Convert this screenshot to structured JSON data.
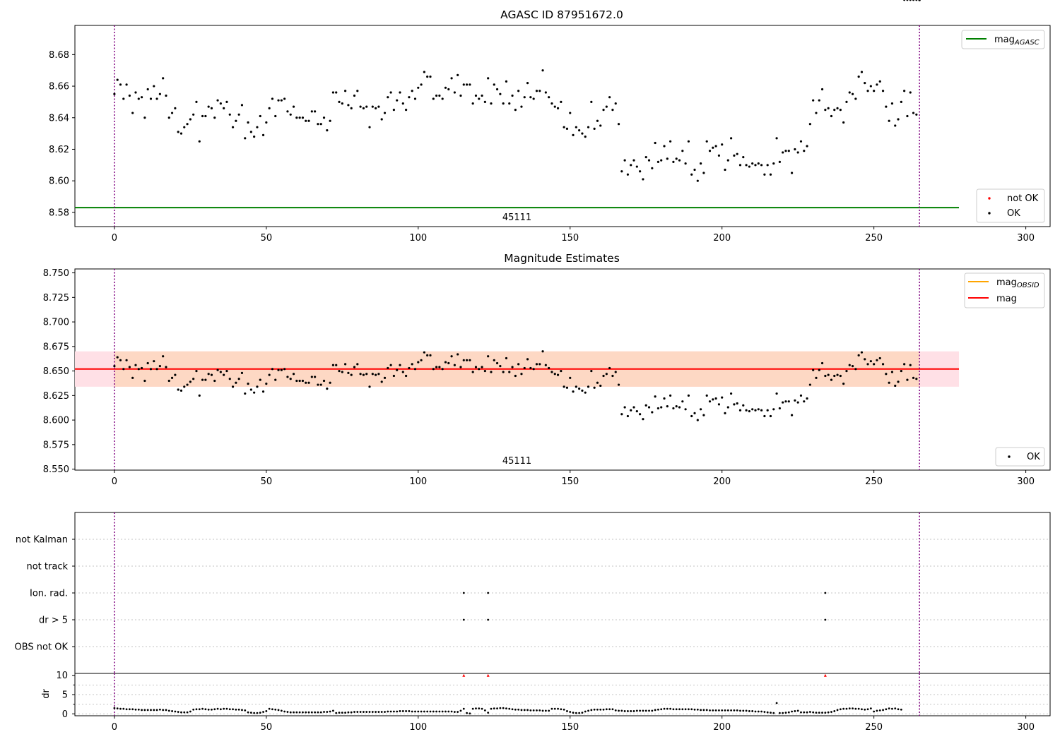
{
  "chart_data": [
    {
      "type": "scatter",
      "title": "AGASC ID 87951672.0",
      "xlim": [
        -13,
        308
      ],
      "ylim": [
        8.571,
        8.6985
      ],
      "xticks": [
        0,
        50,
        100,
        150,
        200,
        250,
        300
      ],
      "yticks": [
        "8.58",
        "8.60",
        "8.62",
        "8.64",
        "8.66",
        "8.68"
      ],
      "reference_line": {
        "name": "mag_AGASC",
        "value": 8.583,
        "color": "#008000",
        "x": [
          -13,
          278
        ]
      },
      "obsid_bounds": [
        0,
        265
      ],
      "obsid_label": "45111",
      "legend_top": {
        "label_main": "mag",
        "label_sub": "AGASC",
        "position": "top-right"
      },
      "legend_bottom": {
        "items": [
          "not OK",
          "OK"
        ],
        "colors": [
          "#ff0000",
          "#000000"
        ],
        "position": "bottom-right"
      },
      "series": [
        {
          "name": "OK",
          "values_from": "magnitudes"
        }
      ],
      "grid": false
    },
    {
      "type": "scatter",
      "title": "Magnitude Estimates",
      "xlim": [
        -13,
        308
      ],
      "ylim": [
        8.549,
        8.754
      ],
      "xticks": [
        0,
        50,
        100,
        150,
        200,
        250,
        300
      ],
      "yticks": [
        "8.550",
        "8.575",
        "8.600",
        "8.625",
        "8.650",
        "8.675",
        "8.700",
        "8.725",
        "8.750"
      ],
      "band": {
        "low": 8.634,
        "high": 8.67,
        "x": [
          -13,
          278
        ],
        "colors": [
          "#ffe0e6",
          "#fdd8c4"
        ]
      },
      "mag_line": {
        "name": "mag",
        "value": 8.652,
        "color": "#ff0000"
      },
      "mag_obsid_line": {
        "name": "mag_OBSID",
        "value": 8.652,
        "color": "#ffa500"
      },
      "obsid_bounds": [
        0,
        265
      ],
      "obsid_label": "45111",
      "legend_top": {
        "items": [
          {
            "main": "mag",
            "sub": "OBSID",
            "color": "#ffa500"
          },
          {
            "main": "mag",
            "sub": "",
            "color": "#ff0000"
          }
        ],
        "position": "top-right"
      },
      "legend_bottom": {
        "items": [
          "OK"
        ],
        "position": "bottom-right"
      },
      "series": [
        {
          "name": "OK",
          "values_from": "magnitudes"
        }
      ],
      "grid": false
    },
    {
      "type": "scatter",
      "title": "",
      "xlim": [
        -13,
        308
      ],
      "categories": [
        "OBS not OK",
        "dr > 5",
        "Ion. rad.",
        "not track",
        "not Kalman"
      ],
      "flags": [
        {
          "category": "dr > 5",
          "x": [
            115,
            123,
            234
          ]
        },
        {
          "category": "Ion. rad.",
          "x": [
            115,
            123,
            234
          ]
        }
      ],
      "obsid_bounds": [
        0,
        265
      ],
      "grid": true
    },
    {
      "type": "scatter",
      "title": "",
      "ylabel": "dr",
      "xlim": [
        -13,
        308
      ],
      "ylim": [
        -0.5,
        10.5
      ],
      "xticks": [
        0,
        50,
        100,
        150,
        200,
        250,
        300
      ],
      "yticks": [
        0,
        5,
        10
      ],
      "flagged_points": {
        "x": [
          115,
          123,
          234
        ],
        "y": 10,
        "color": "#ff0000"
      },
      "series": [
        {
          "name": "dr",
          "values_from": "dr"
        }
      ],
      "obsid_bounds": [
        0,
        265
      ],
      "grid": true
    }
  ],
  "x": [
    0,
    1,
    2,
    3,
    4,
    5,
    6,
    7,
    8,
    9,
    10,
    11,
    12,
    13,
    14,
    15,
    16,
    17,
    18,
    19,
    20,
    21,
    22,
    23,
    24,
    25,
    26,
    27,
    28,
    29,
    30,
    31,
    32,
    33,
    34,
    35,
    36,
    37,
    38,
    39,
    40,
    41,
    42,
    43,
    44,
    45,
    46,
    47,
    48,
    49,
    50,
    51,
    52,
    53,
    54,
    55,
    56,
    57,
    58,
    59,
    60,
    61,
    62,
    63,
    64,
    65,
    66,
    67,
    68,
    69,
    70,
    71,
    72,
    73,
    74,
    75,
    76,
    77,
    78,
    79,
    80,
    81,
    82,
    83,
    84,
    85,
    86,
    87,
    88,
    89,
    90,
    91,
    92,
    93,
    94,
    95,
    96,
    97,
    98,
    99,
    100,
    101,
    102,
    103,
    104,
    105,
    106,
    107,
    108,
    109,
    110,
    111,
    112,
    113,
    114,
    115,
    116,
    117,
    118,
    119,
    120,
    121,
    122,
    123,
    124,
    125,
    126,
    127,
    128,
    129,
    130,
    131,
    132,
    133,
    134,
    135,
    136,
    137,
    138,
    139,
    140,
    141,
    142,
    143,
    144,
    145,
    146,
    147,
    148,
    149,
    150,
    151,
    152,
    153,
    154,
    155,
    156,
    157,
    158,
    159,
    160,
    161,
    162,
    163,
    164,
    165,
    166,
    167,
    168,
    169,
    170,
    171,
    172,
    173,
    174,
    175,
    176,
    177,
    178,
    179,
    180,
    181,
    182,
    183,
    184,
    185,
    186,
    187,
    188,
    189,
    190,
    191,
    192,
    193,
    194,
    195,
    196,
    197,
    198,
    199,
    200,
    201,
    202,
    203,
    204,
    205,
    206,
    207,
    208,
    209,
    210,
    211,
    212,
    213,
    214,
    215,
    216,
    217,
    218,
    219,
    220,
    221,
    222,
    223,
    224,
    225,
    226,
    227,
    228,
    229,
    230,
    231,
    232,
    233,
    234,
    235,
    236,
    237,
    238,
    239,
    240,
    241,
    242,
    243,
    244,
    245,
    246,
    247,
    248,
    249,
    250,
    251,
    252,
    253,
    254,
    255,
    256,
    257,
    258,
    259,
    260,
    261,
    262,
    263,
    264,
    265
  ],
  "magnitudes": [
    8.655,
    8.664,
    8.661,
    8.652,
    8.661,
    8.654,
    8.643,
    8.656,
    8.652,
    8.653,
    8.64,
    8.658,
    8.652,
    8.66,
    8.652,
    8.655,
    8.665,
    8.654,
    8.64,
    8.643,
    8.646,
    8.631,
    8.63,
    8.634,
    8.636,
    8.639,
    8.642,
    8.65,
    8.625,
    8.641,
    8.641,
    8.647,
    8.646,
    8.64,
    8.651,
    8.649,
    8.646,
    8.65,
    8.642,
    8.634,
    8.638,
    8.642,
    8.648,
    8.627,
    8.637,
    8.631,
    8.628,
    8.634,
    8.641,
    8.629,
    8.637,
    8.646,
    8.652,
    8.641,
    8.651,
    8.651,
    8.652,
    8.644,
    8.642,
    8.647,
    8.64,
    8.64,
    8.64,
    8.638,
    8.638,
    8.644,
    8.644,
    8.636,
    8.636,
    8.64,
    8.632,
    8.638,
    8.656,
    8.656,
    8.65,
    8.649,
    8.657,
    8.648,
    8.646,
    8.654,
    8.657,
    8.647,
    8.646,
    8.647,
    8.634,
    8.647,
    8.646,
    8.647,
    8.639,
    8.643,
    8.653,
    8.656,
    8.645,
    8.651,
    8.656,
    8.649,
    8.645,
    8.653,
    8.657,
    8.652,
    8.659,
    8.661,
    8.669,
    8.666,
    8.666,
    8.652,
    8.654,
    8.654,
    8.652,
    8.659,
    8.658,
    8.665,
    8.656,
    8.667,
    8.654,
    8.661,
    8.661,
    8.661,
    8.649,
    8.654,
    8.652,
    8.654,
    8.65,
    8.665,
    8.649,
    8.661,
    8.658,
    8.655,
    8.649,
    8.663,
    8.649,
    8.654,
    8.645,
    8.657,
    8.647,
    8.653,
    8.662,
    8.653,
    8.652,
    8.657,
    8.657,
    8.67,
    8.656,
    8.653,
    8.649,
    8.647,
    8.646,
    8.65,
    8.634,
    8.633,
    8.643,
    8.629,
    8.634,
    8.632,
    8.63,
    8.628,
    8.634,
    8.65,
    8.633,
    8.638,
    8.635,
    8.645,
    8.647,
    8.653,
    8.645,
    8.649,
    8.636,
    8.606,
    8.613,
    8.604,
    8.61,
    8.613,
    8.609,
    8.606,
    8.601,
    8.615,
    8.613,
    8.608,
    8.624,
    8.612,
    8.613,
    8.622,
    8.614,
    8.625,
    8.612,
    8.614,
    8.613,
    8.619,
    8.611,
    8.625,
    8.604,
    8.607,
    8.6,
    8.611,
    8.605,
    8.625,
    8.619,
    8.621,
    8.622,
    8.616,
    8.623,
    8.607,
    8.613,
    8.627,
    8.616,
    8.617,
    8.61,
    8.615,
    8.61,
    8.609,
    8.611,
    8.61,
    8.611,
    8.61,
    8.604,
    8.61,
    8.604,
    8.611,
    8.627,
    8.612,
    8.618,
    8.619,
    8.619,
    8.605,
    8.62,
    8.618,
    8.625,
    8.619,
    8.622,
    8.636,
    8.651,
    8.643,
    8.651,
    8.658,
    8.645,
    8.646,
    8.641,
    8.645,
    8.646,
    8.645,
    8.637,
    8.65,
    8.656,
    8.655,
    8.652,
    8.666,
    8.669,
    8.662,
    8.657,
    8.66,
    8.657,
    8.661,
    8.663,
    8.657,
    8.647,
    8.638,
    8.649,
    8.635,
    8.639,
    8.65,
    8.657,
    8.641,
    8.656,
    8.643,
    8.642
  ],
  "dr": [
    1.5,
    1.4,
    1.3,
    1.3,
    1.2,
    1.2,
    1.2,
    1.1,
    1.1,
    1.0,
    1.0,
    1.0,
    1.0,
    1.0,
    1.0,
    1.1,
    1.0,
    1.0,
    0.8,
    0.7,
    0.6,
    0.5,
    0.4,
    0.4,
    0.4,
    0.6,
    1.1,
    1.2,
    1.2,
    1.3,
    1.2,
    1.1,
    1.1,
    1.2,
    1.3,
    1.2,
    1.3,
    1.3,
    1.2,
    1.2,
    1.1,
    1.1,
    1.0,
    0.9,
    0.4,
    0.3,
    0.2,
    0.2,
    0.3,
    0.5,
    0.7,
    1.3,
    1.2,
    1.1,
    1.0,
    0.8,
    0.6,
    0.5,
    0.4,
    0.4,
    0.4,
    0.4,
    0.4,
    0.4,
    0.4,
    0.4,
    0.4,
    0.4,
    0.4,
    0.5,
    0.5,
    0.6,
    0.8,
    0.2,
    0.3,
    0.3,
    0.3,
    0.4,
    0.4,
    0.5,
    0.5,
    0.5,
    0.5,
    0.5,
    0.5,
    0.5,
    0.5,
    0.5,
    0.5,
    0.5,
    0.6,
    0.6,
    0.6,
    0.6,
    0.7,
    0.7,
    0.7,
    0.7,
    0.6,
    0.6,
    0.6,
    0.6,
    0.6,
    0.6,
    0.6,
    0.6,
    0.6,
    0.6,
    0.6,
    0.6,
    0.6,
    0.6,
    0.5,
    0.5,
    0.8,
    1.3,
    0.2,
    0.1,
    1.3,
    1.4,
    1.4,
    1.3,
    0.9,
    0.3,
    1.3,
    1.4,
    1.4,
    1.5,
    1.5,
    1.4,
    1.3,
    1.2,
    1.1,
    1.1,
    1.0,
    1.0,
    1.0,
    0.9,
    0.9,
    0.9,
    0.9,
    0.8,
    0.8,
    0.8,
    1.3,
    1.3,
    1.3,
    1.2,
    1.1,
    0.7,
    0.5,
    0.3,
    0.2,
    0.2,
    0.3,
    0.6,
    0.8,
    1.0,
    1.1,
    1.1,
    1.1,
    1.1,
    1.2,
    1.2,
    1.2,
    0.9,
    0.8,
    0.8,
    0.7,
    0.7,
    0.7,
    0.7,
    0.8,
    0.8,
    0.8,
    0.8,
    0.8,
    0.8,
    1.0,
    1.1,
    1.2,
    1.3,
    1.3,
    1.3,
    1.2,
    1.2,
    1.2,
    1.2,
    1.2,
    1.2,
    1.2,
    1.1,
    1.1,
    1.0,
    1.0,
    1.0,
    0.9,
    0.9,
    0.9,
    0.9,
    0.9,
    0.9,
    0.9,
    0.9,
    0.9,
    0.9,
    0.8,
    0.8,
    0.8,
    0.7,
    0.7,
    0.6,
    0.6,
    0.6,
    0.5,
    0.4,
    0.3,
    0.2,
    2.8,
    0.2,
    0.2,
    0.3,
    0.4,
    0.6,
    0.7,
    0.8,
    0.4,
    0.4,
    0.4,
    0.5,
    0.4,
    0.3,
    0.3,
    0.3,
    0.3,
    0.4,
    0.5,
    0.7,
    1.0,
    1.2,
    1.3,
    1.3,
    1.4,
    1.4,
    1.3,
    1.3,
    1.2,
    1.1,
    1.2,
    1.4,
    0.6,
    0.8,
    0.9,
    1.0,
    1.2,
    1.4,
    1.3,
    1.4,
    1.2,
    1.1
  ]
}
